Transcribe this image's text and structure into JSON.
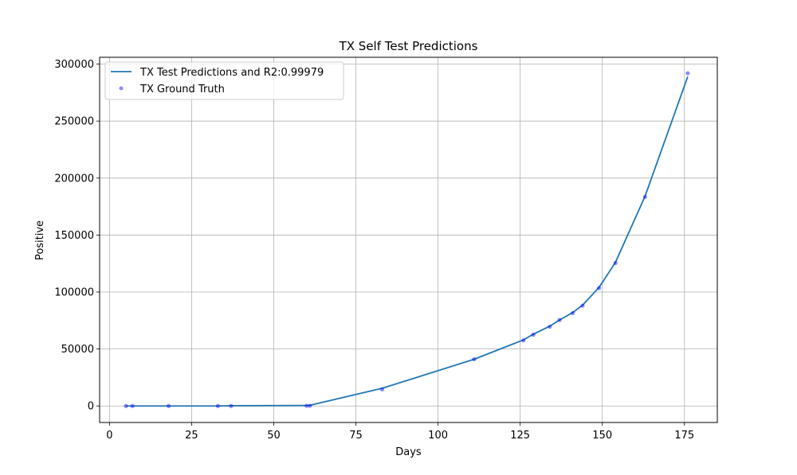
{
  "chart_data": {
    "type": "line",
    "title": "TX Self Test Predictions",
    "xlabel": "Days",
    "ylabel": "Positive",
    "xlim": [
      -3,
      185
    ],
    "ylim": [
      -14500,
      306000
    ],
    "xticks": [
      0,
      25,
      50,
      75,
      100,
      125,
      150,
      175
    ],
    "yticks": [
      0,
      50000,
      100000,
      150000,
      200000,
      250000,
      300000
    ],
    "grid": true,
    "legend_position": "top-left",
    "series": [
      {
        "name": "TX Test Predictions and R2:0.99979",
        "style": "line",
        "color": "#1f77b4",
        "x": [
          5,
          7,
          18,
          33,
          37,
          60,
          61,
          83,
          111,
          126,
          129,
          134,
          137,
          141,
          144,
          149,
          154,
          163,
          176
        ],
        "y": [
          0,
          0,
          0,
          0,
          200,
          400,
          600,
          15500,
          41000,
          58000,
          63000,
          70000,
          75500,
          82000,
          88500,
          104000,
          126000,
          184000,
          289000
        ]
      },
      {
        "name": "TX Ground Truth",
        "style": "scatter",
        "color": "#0000ff",
        "x": [
          5,
          7,
          18,
          33,
          37,
          60,
          61,
          83,
          111,
          126,
          129,
          134,
          137,
          141,
          144,
          149,
          154,
          163,
          176
        ],
        "y": [
          0,
          0,
          0,
          0,
          0,
          100,
          100,
          14500,
          41000,
          57500,
          62500,
          69500,
          75500,
          81500,
          88000,
          103500,
          125500,
          183500,
          292000
        ]
      }
    ]
  }
}
